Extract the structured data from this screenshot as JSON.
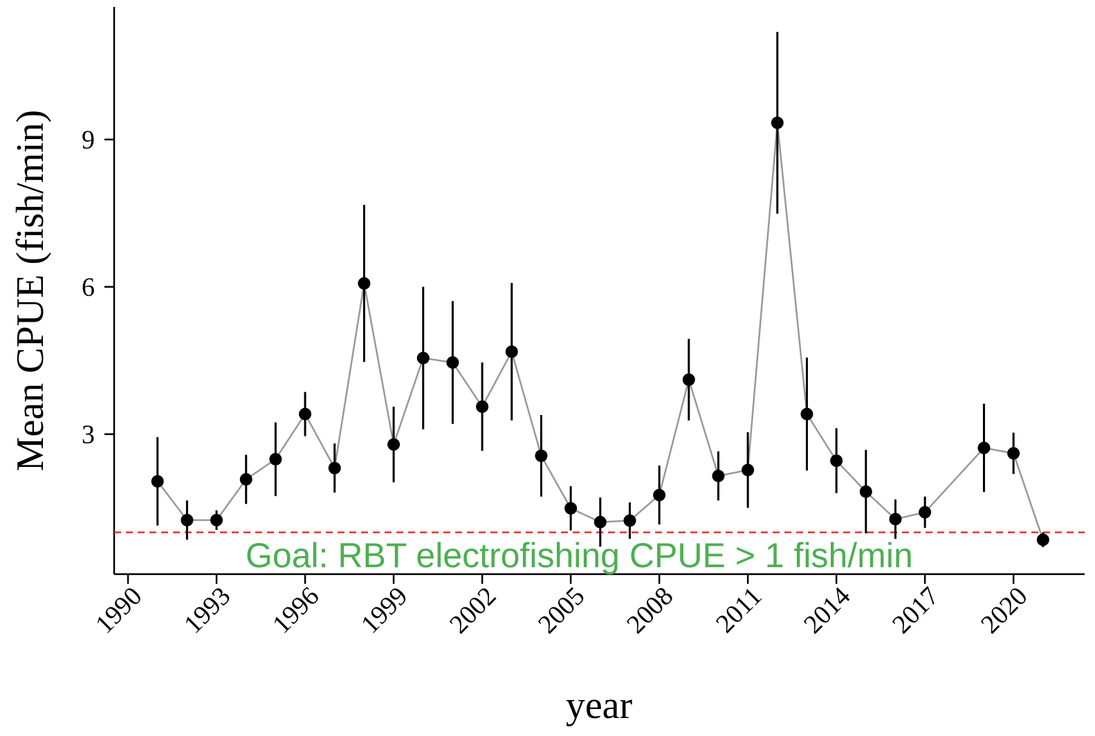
{
  "chart_data": {
    "type": "errorbar-line",
    "y_label": "Mean CPUE (fish/min)",
    "x_label": "year",
    "x": [
      1991,
      1992,
      1993,
      1994,
      1995,
      1996,
      1997,
      1998,
      1999,
      2000,
      2001,
      2002,
      2003,
      2004,
      2005,
      2006,
      2007,
      2008,
      2009,
      2010,
      2011,
      2012,
      2013,
      2014,
      2015,
      2016,
      2017,
      2019,
      2020,
      2021
    ],
    "values": [
      2.04,
      1.25,
      1.25,
      2.08,
      2.49,
      3.41,
      2.31,
      6.07,
      2.79,
      4.55,
      4.46,
      3.56,
      4.68,
      2.56,
      1.49,
      1.21,
      1.24,
      1.76,
      4.11,
      2.15,
      2.27,
      9.34,
      3.41,
      2.46,
      1.83,
      1.27,
      1.41,
      2.72,
      2.61,
      0.85
    ],
    "errors": [
      0.9,
      0.4,
      0.2,
      0.5,
      0.75,
      0.45,
      0.5,
      1.6,
      0.77,
      1.45,
      1.25,
      0.9,
      1.4,
      0.83,
      0.45,
      0.5,
      0.37,
      0.6,
      0.83,
      0.5,
      0.77,
      1.85,
      1.15,
      0.66,
      0.85,
      0.4,
      0.32,
      0.9,
      0.42,
      0.15
    ],
    "line_color": "#999999",
    "marker_color": "#000000",
    "xlim": [
      1989.53,
      2022.41
    ],
    "ylim": [
      0.15,
      11.7
    ],
    "xticks": [
      1990,
      1993,
      1996,
      1999,
      2002,
      2005,
      2008,
      2011,
      2014,
      2017,
      2020
    ],
    "yticks": [
      3,
      6,
      9
    ],
    "reference_line": {
      "value": 1,
      "color": "#e83030",
      "label": "Goal: RBT electrofishing CPUE > 1 fish/min",
      "label_color": "#4caf50"
    }
  }
}
